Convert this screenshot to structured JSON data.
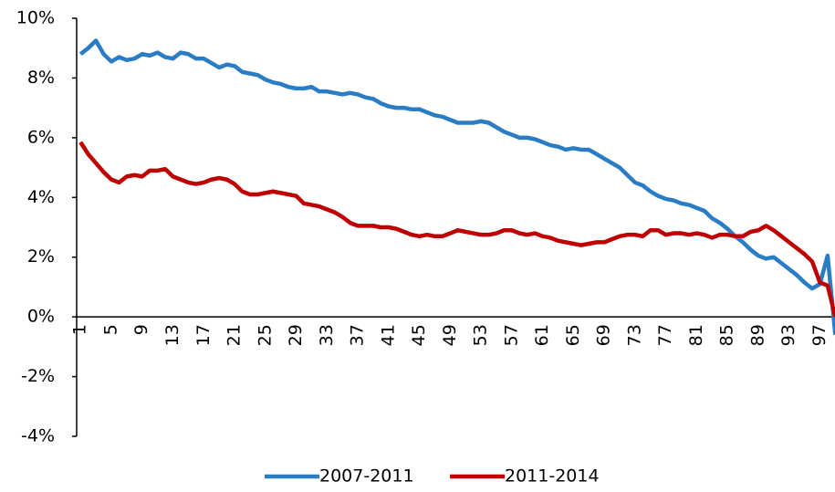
{
  "chart_data": {
    "type": "line",
    "categories": [
      "1",
      null,
      null,
      null,
      "5",
      null,
      null,
      null,
      "9",
      null,
      null,
      null,
      "13",
      null,
      null,
      null,
      "17",
      null,
      null,
      null,
      "21",
      null,
      null,
      null,
      "25",
      null,
      null,
      null,
      "29",
      null,
      null,
      null,
      "33",
      null,
      null,
      null,
      "37",
      null,
      null,
      null,
      "41",
      null,
      null,
      null,
      "45",
      null,
      null,
      null,
      "49",
      null,
      null,
      null,
      "53",
      null,
      null,
      null,
      "57",
      null,
      null,
      null,
      "61",
      null,
      null,
      null,
      "65",
      null,
      null,
      null,
      "69",
      null,
      null,
      null,
      "73",
      null,
      null,
      null,
      "77",
      null,
      null,
      null,
      "81",
      null,
      null,
      null,
      "85",
      null,
      null,
      null,
      "89",
      null,
      null,
      null,
      "93",
      null,
      null,
      null,
      "97",
      null,
      null
    ],
    "series": [
      {
        "name": "2007-2011",
        "color": "#2a7dc4",
        "values": [
          8.8,
          9.0,
          9.25,
          8.8,
          8.55,
          8.7,
          8.6,
          8.65,
          8.8,
          8.75,
          8.85,
          8.7,
          8.65,
          8.85,
          8.8,
          8.65,
          8.65,
          8.5,
          8.35,
          8.45,
          8.4,
          8.2,
          8.15,
          8.1,
          7.95,
          7.85,
          7.8,
          7.7,
          7.65,
          7.65,
          7.7,
          7.55,
          7.55,
          7.5,
          7.45,
          7.5,
          7.45,
          7.35,
          7.3,
          7.15,
          7.05,
          7.0,
          7.0,
          6.95,
          6.95,
          6.85,
          6.75,
          6.7,
          6.6,
          6.5,
          6.5,
          6.5,
          6.55,
          6.5,
          6.35,
          6.2,
          6.1,
          6.0,
          6.0,
          5.95,
          5.85,
          5.75,
          5.7,
          5.6,
          5.65,
          5.6,
          5.6,
          5.45,
          5.3,
          5.15,
          5.0,
          4.75,
          4.5,
          4.4,
          4.2,
          4.05,
          3.95,
          3.9,
          3.8,
          3.75,
          3.65,
          3.55,
          3.3,
          3.15,
          2.95,
          2.7,
          2.5,
          2.25,
          2.05,
          1.95,
          2.0,
          1.8,
          1.6,
          1.4,
          1.15,
          0.95,
          1.1,
          2.05,
          -0.6
        ]
      },
      {
        "name": "2011-2014",
        "color": "#c00000",
        "values": [
          5.85,
          5.45,
          5.15,
          4.85,
          4.6,
          4.5,
          4.7,
          4.75,
          4.7,
          4.9,
          4.9,
          4.95,
          4.7,
          4.6,
          4.5,
          4.45,
          4.5,
          4.6,
          4.65,
          4.6,
          4.45,
          4.2,
          4.1,
          4.1,
          4.15,
          4.2,
          4.15,
          4.1,
          4.05,
          3.8,
          3.75,
          3.7,
          3.6,
          3.5,
          3.35,
          3.15,
          3.05,
          3.05,
          3.05,
          3.0,
          3.0,
          2.95,
          2.85,
          2.75,
          2.7,
          2.75,
          2.7,
          2.7,
          2.8,
          2.9,
          2.85,
          2.8,
          2.75,
          2.75,
          2.8,
          2.9,
          2.9,
          2.8,
          2.75,
          2.8,
          2.7,
          2.65,
          2.55,
          2.5,
          2.45,
          2.4,
          2.45,
          2.5,
          2.5,
          2.6,
          2.7,
          2.75,
          2.75,
          2.7,
          2.9,
          2.9,
          2.75,
          2.8,
          2.8,
          2.75,
          2.8,
          2.75,
          2.65,
          2.75,
          2.75,
          2.7,
          2.7,
          2.85,
          2.9,
          3.05,
          2.9,
          2.7,
          2.5,
          2.3,
          2.1,
          1.85,
          1.15,
          1.05,
          0.0
        ]
      }
    ],
    "ylim": [
      -4,
      10
    ],
    "yticks": [
      {
        "value": -4,
        "label": "-4%"
      },
      {
        "value": -2,
        "label": "-2%"
      },
      {
        "value": 0,
        "label": "0%"
      },
      {
        "value": 2,
        "label": "2%"
      },
      {
        "value": 4,
        "label": "4%"
      },
      {
        "value": 6,
        "label": "6%"
      },
      {
        "value": 8,
        "label": "8%"
      },
      {
        "value": 10,
        "label": "10%"
      }
    ],
    "grid": false,
    "legend": "bottom"
  }
}
